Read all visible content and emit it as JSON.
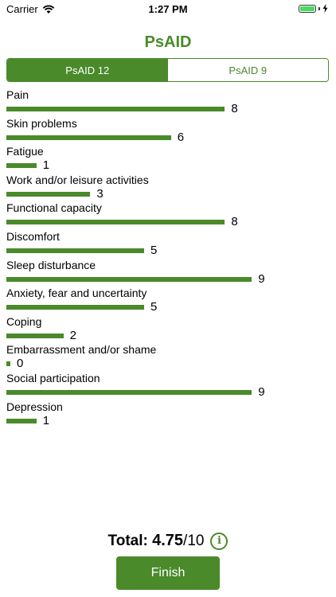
{
  "status": {
    "carrier": "Carrier",
    "time": "1:27 PM"
  },
  "app": {
    "title": "PsAID",
    "accent_color": "#4a8a2a"
  },
  "tabs": [
    {
      "label": "PsAID 12",
      "selected": true
    },
    {
      "label": "PsAID 9",
      "selected": false
    }
  ],
  "scale_max": 10,
  "items": [
    {
      "label": "Pain",
      "value": 8
    },
    {
      "label": "Skin problems",
      "value": 6
    },
    {
      "label": "Fatigue",
      "value": 1
    },
    {
      "label": "Work and/or leisure activities",
      "value": 3
    },
    {
      "label": "Functional capacity",
      "value": 8
    },
    {
      "label": "Discomfort",
      "value": 5
    },
    {
      "label": "Sleep disturbance",
      "value": 9
    },
    {
      "label": "Anxiety, fear and uncertainty",
      "value": 5
    },
    {
      "label": "Coping",
      "value": 2
    },
    {
      "label": "Embarrassment and/or shame",
      "value": 0
    },
    {
      "label": "Social participation",
      "value": 9
    },
    {
      "label": "Depression",
      "value": 1
    }
  ],
  "total": {
    "label": "Total:",
    "score": "4.75",
    "max": "/10"
  },
  "icons": {
    "info": "info-icon",
    "wifi": "wifi-icon",
    "battery": "battery-icon",
    "charging": "charging-bolt-icon"
  },
  "finish_label": "Finish"
}
